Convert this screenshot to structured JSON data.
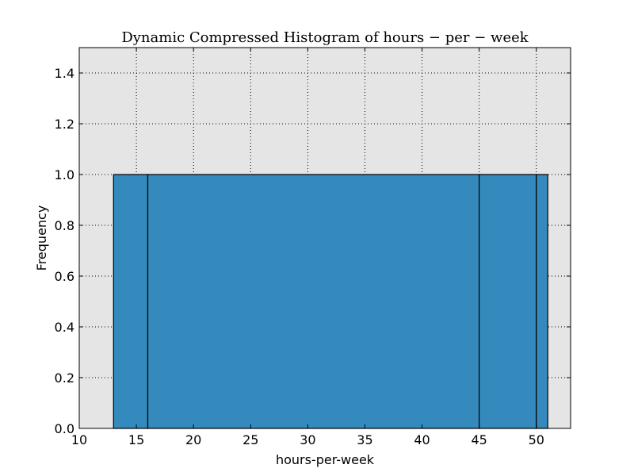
{
  "chart_data": {
    "type": "bar",
    "title": "Dynamic Compressed Histogram of hours − per − week",
    "xlabel": "hours-per-week",
    "ylabel": "Frequency",
    "xlim": [
      10,
      53
    ],
    "ylim": [
      0,
      1.5
    ],
    "xticks": [
      "10",
      "15",
      "20",
      "25",
      "30",
      "35",
      "40",
      "45",
      "50"
    ],
    "yticks": [
      "0.0",
      "0.2",
      "0.4",
      "0.6",
      "0.8",
      "1.0",
      "1.2",
      "1.4"
    ],
    "grid": true,
    "bins": [
      {
        "start": 13,
        "end": 16,
        "value": 1.0
      },
      {
        "start": 16,
        "end": 45,
        "value": 1.0
      },
      {
        "start": 45,
        "end": 50,
        "value": 1.0
      },
      {
        "start": 50,
        "end": 51,
        "value": 1.0
      }
    ],
    "colors": {
      "bar": "#348abd",
      "plot_background": "#e5e5e5",
      "grid": "#000000"
    }
  }
}
